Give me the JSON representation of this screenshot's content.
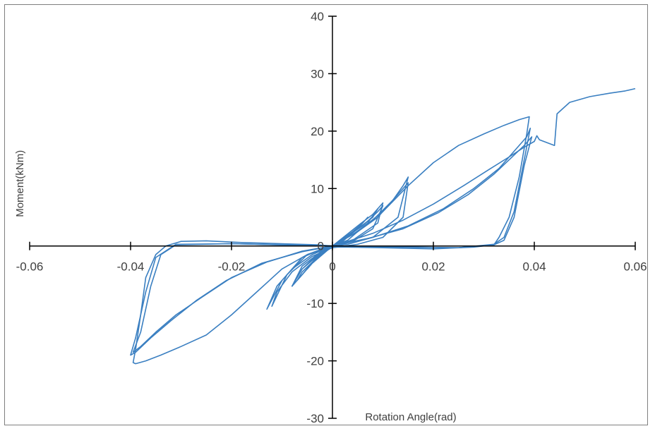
{
  "chart_data": {
    "type": "line",
    "title": "",
    "xlabel": "Rotation Angle(rad)",
    "ylabel": "Moment(kNm)",
    "xlim": [
      -0.06,
      0.06
    ],
    "ylim": [
      -30,
      40
    ],
    "x_ticks": [
      "-0.06",
      "-0.04",
      "-0.02",
      "0",
      "0.02",
      "0.04",
      "0.06"
    ],
    "y_ticks": [
      "40",
      "30",
      "20",
      "10",
      "0",
      "-10",
      "-20",
      "-30"
    ],
    "grid": false,
    "legend": "none",
    "series_color": "#3a7fc1",
    "loops": [
      {
        "x": [
          0,
          0.004,
          0.006,
          0.007,
          0.005,
          0.002,
          0,
          -0.002,
          -0.004,
          -0.005,
          -0.003,
          0
        ],
        "y": [
          0,
          2.5,
          4.0,
          5.0,
          3.0,
          0.8,
          0,
          -1.5,
          -3.0,
          -4.0,
          -2.0,
          0
        ]
      },
      {
        "x": [
          0,
          0.005,
          0.008,
          0.009,
          0.007,
          0.003,
          0,
          -0.003,
          -0.006,
          -0.007,
          -0.004,
          0
        ],
        "y": [
          0,
          3.0,
          5.0,
          6.5,
          4.0,
          1.0,
          0,
          -2.0,
          -4.5,
          -6.0,
          -3.0,
          0
        ]
      },
      {
        "x": [
          0,
          0.005,
          0.008,
          0.01,
          0.009,
          0.004,
          0,
          -0.003,
          -0.006,
          -0.008,
          -0.006,
          -0.002,
          0
        ],
        "y": [
          0,
          3.5,
          5.5,
          7.5,
          4.0,
          1.0,
          -0.2,
          -1.5,
          -4.0,
          -7.0,
          -4.0,
          -1.0,
          0
        ]
      },
      {
        "x": [
          0,
          0.006,
          0.009,
          0.01,
          0.008,
          0.004,
          0,
          -0.003,
          -0.006,
          -0.008,
          -0.006,
          -0.002,
          0
        ],
        "y": [
          0,
          3.5,
          6.0,
          7.0,
          3.0,
          0.8,
          -0.2,
          -1.8,
          -5.0,
          -7.0,
          -3.5,
          -0.8,
          0
        ]
      },
      {
        "x": [
          0,
          0.004,
          0.008,
          0.012,
          0.014,
          0.015,
          0.013,
          0.008,
          0.003,
          0,
          -0.004,
          -0.008,
          -0.011,
          -0.013,
          -0.01,
          -0.006,
          -0.002,
          0
        ],
        "y": [
          0,
          2.0,
          4.5,
          8.0,
          10.5,
          12.0,
          5.0,
          1.5,
          0.3,
          0,
          -1.5,
          -4.0,
          -7.0,
          -11.0,
          -6.0,
          -2.0,
          -0.5,
          0
        ]
      },
      {
        "x": [
          0,
          0.005,
          0.009,
          0.013,
          0.015,
          0.014,
          0.01,
          0.005,
          0,
          -0.004,
          -0.008,
          -0.011,
          -0.012,
          -0.009,
          -0.005,
          -0.001,
          0
        ],
        "y": [
          0,
          2.5,
          5.0,
          9.0,
          11.0,
          5.0,
          1.5,
          0.3,
          -0.3,
          -1.8,
          -4.5,
          -8.0,
          -10.5,
          -5.0,
          -1.5,
          -0.2,
          0
        ]
      },
      {
        "x": [
          0,
          0.005,
          0.01,
          0.015,
          0.02,
          0.025,
          0.03,
          0.034,
          0.037,
          0.039,
          0.0385,
          0.037,
          0.035,
          0.033,
          0.032,
          0.028,
          0.02,
          0.01,
          0.003,
          0,
          -0.005,
          -0.01,
          -0.015,
          -0.02,
          -0.025,
          -0.03,
          -0.034,
          -0.037,
          -0.039,
          -0.0395,
          -0.039,
          -0.038,
          -0.037,
          -0.035,
          -0.033,
          -0.03,
          -0.025,
          -0.018,
          -0.01,
          -0.003,
          0
        ],
        "y": [
          0,
          2.5,
          6.0,
          10.5,
          14.5,
          17.5,
          19.5,
          21.0,
          22.0,
          22.5,
          19.5,
          12.0,
          5.0,
          1.5,
          0.2,
          -0.2,
          -0.5,
          -0.3,
          -0.2,
          -0.2,
          -1.5,
          -4.0,
          -8.0,
          -12.0,
          -15.5,
          -17.5,
          -19.0,
          -20.0,
          -20.5,
          -20.3,
          -18.0,
          -12.0,
          -5.5,
          -1.5,
          0,
          0.8,
          0.9,
          0.6,
          0.4,
          0.2,
          0
        ]
      },
      {
        "x": [
          0,
          0.008,
          0.015,
          0.022,
          0.028,
          0.033,
          0.036,
          0.0385,
          0.0392,
          0.038,
          0.036,
          0.034,
          0.032,
          0.025,
          0.015,
          0.006,
          0,
          -0.006,
          -0.014,
          -0.021,
          -0.027,
          -0.032,
          -0.036,
          -0.039,
          -0.04,
          -0.039,
          -0.037,
          -0.035,
          -0.031,
          -0.02,
          -0.01,
          -0.003,
          0
        ],
        "y": [
          0,
          1.5,
          3.5,
          6.5,
          10.0,
          13.5,
          16.5,
          19.0,
          20.5,
          15.0,
          6.0,
          1.5,
          0.3,
          -0.3,
          -0.2,
          -0.1,
          0,
          -1.0,
          -3.0,
          -6.0,
          -9.5,
          -13.0,
          -16.0,
          -18.5,
          -19.0,
          -16.0,
          -8.0,
          -2.0,
          0.3,
          0.4,
          0.2,
          0.1,
          0
        ]
      },
      {
        "x": [
          0,
          0.007,
          0.014,
          0.021,
          0.027,
          0.032,
          0.035,
          0.038,
          0.0395,
          0.038,
          0.036,
          0.034,
          0.032,
          0.025,
          0.015,
          0.006,
          0,
          -0.006,
          -0.013,
          -0.02,
          -0.026,
          -0.031,
          -0.035,
          -0.038,
          -0.0395,
          -0.038,
          -0.036,
          -0.034,
          -0.031,
          -0.02,
          -0.01,
          -0.003,
          0
        ],
        "y": [
          0,
          1.3,
          3.0,
          5.8,
          9.0,
          12.5,
          15.0,
          17.5,
          19.0,
          14.0,
          5.0,
          1.0,
          0.2,
          -0.3,
          -0.2,
          -0.1,
          0,
          -0.9,
          -2.8,
          -5.5,
          -9.0,
          -12.0,
          -15.0,
          -17.5,
          -18.5,
          -15.0,
          -7.0,
          -1.5,
          0.2,
          0.4,
          0.2,
          0.1,
          0
        ]
      },
      {
        "x": [
          0,
          0.003,
          0.008,
          0.014,
          0.02,
          0.026,
          0.031,
          0.035,
          0.038,
          0.04,
          0.0405,
          0.041,
          0.044,
          0.0445,
          0.047,
          0.051,
          0.055,
          0.058,
          0.06
        ],
        "y": [
          0,
          0.8,
          2.2,
          4.5,
          7.3,
          10.5,
          13.3,
          15.5,
          17.2,
          18.2,
          19.2,
          18.5,
          17.5,
          23.0,
          25.0,
          26.0,
          26.6,
          27.0,
          27.4
        ]
      }
    ]
  }
}
